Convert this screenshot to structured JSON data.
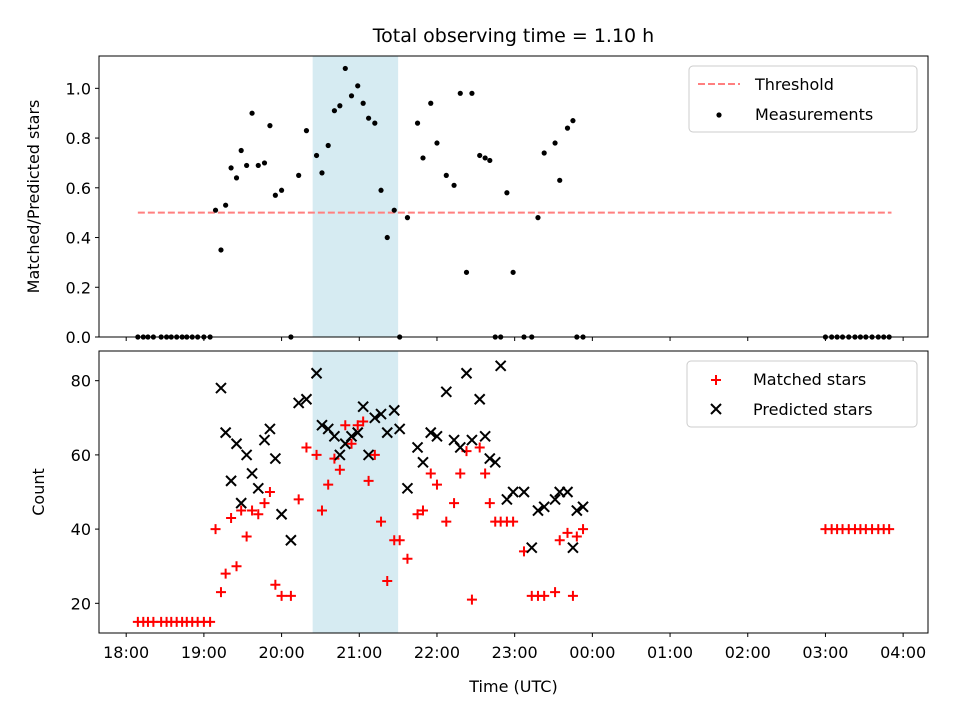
{
  "chart_data": [
    {
      "type": "scatter",
      "title": "Total observing time = 1.10 h",
      "xlabel": "",
      "ylabel": "Matched/Predicted stars",
      "ylim": [
        0,
        1.13
      ],
      "yticks": [
        0.0,
        0.2,
        0.4,
        0.6,
        0.8,
        1.0
      ],
      "ytick_labels": [
        "0.0",
        "0.2",
        "0.4",
        "0.6",
        "0.8",
        "1.0"
      ],
      "x_unit": "hours after 18:00 UTC",
      "xlim": [
        -0.35,
        10.32
      ],
      "legend": [
        "Threshold",
        "Measurements"
      ],
      "legend_position": "top-right",
      "highlight_span": [
        2.4,
        3.5
      ],
      "threshold": {
        "name": "Threshold",
        "x": [
          0.15,
          9.85
        ],
        "y": 0.5,
        "color": "#ff7f7f",
        "style": "dashed"
      },
      "series": [
        {
          "name": "Measurements",
          "color": "#000000",
          "x": [
            0.15,
            0.22,
            0.28,
            0.35,
            0.45,
            0.52,
            0.58,
            0.65,
            0.72,
            0.78,
            0.85,
            0.92,
            1.0,
            1.08,
            1.15,
            1.22,
            1.28,
            1.35,
            1.42,
            1.48,
            1.55,
            1.62,
            1.7,
            1.78,
            1.85,
            1.92,
            2.0,
            2.12,
            2.22,
            2.32,
            2.45,
            2.52,
            2.6,
            2.68,
            2.75,
            2.82,
            2.9,
            2.98,
            3.05,
            3.12,
            3.2,
            3.28,
            3.36,
            3.45,
            3.52,
            3.62,
            3.75,
            3.82,
            3.92,
            4.0,
            4.12,
            4.22,
            4.3,
            4.38,
            4.45,
            4.55,
            4.62,
            4.68,
            4.75,
            4.82,
            4.9,
            4.98,
            5.12,
            5.22,
            5.3,
            5.38,
            5.52,
            5.58,
            5.68,
            5.75,
            5.8,
            5.88,
            9.0,
            9.08,
            9.15,
            9.22,
            9.3,
            9.38,
            9.45,
            9.52,
            9.6,
            9.68,
            9.75,
            9.82
          ],
          "y": [
            0,
            0,
            0,
            0,
            0,
            0,
            0,
            0,
            0,
            0,
            0,
            0,
            0,
            0,
            0.51,
            0.35,
            0.53,
            0.68,
            0.64,
            0.75,
            0.69,
            0.9,
            0.69,
            0.7,
            0.85,
            0.57,
            0.59,
            0,
            0.65,
            0.83,
            0.73,
            0.66,
            0.77,
            0.91,
            0.93,
            1.08,
            0.97,
            1.01,
            0.94,
            0.88,
            0.86,
            0.59,
            0.4,
            0.51,
            0,
            0.48,
            0.86,
            0.72,
            0.94,
            0.78,
            0.65,
            0.61,
            0.98,
            0.26,
            0.98,
            0.73,
            0.72,
            0.71,
            0,
            0,
            0.58,
            0.26,
            0,
            0,
            0.48,
            0.74,
            0.78,
            0.63,
            0.84,
            0.87,
            0,
            0,
            0,
            0,
            0,
            0,
            0,
            0,
            0,
            0,
            0,
            0,
            0,
            0
          ]
        }
      ]
    },
    {
      "type": "scatter",
      "title": "",
      "xlabel": "Time (UTC)",
      "ylabel": "Count",
      "ylim": [
        12,
        88
      ],
      "yticks": [
        20,
        40,
        60,
        80
      ],
      "ytick_labels": [
        "20",
        "40",
        "60",
        "80"
      ],
      "x_unit": "hours after 18:00 UTC",
      "xlim": [
        -0.35,
        10.32
      ],
      "xticks": [
        0,
        1,
        2,
        3,
        4,
        5,
        6,
        7,
        8,
        9,
        10
      ],
      "xtick_labels": [
        "18:00",
        "19:00",
        "20:00",
        "21:00",
        "22:00",
        "23:00",
        "00:00",
        "01:00",
        "02:00",
        "03:00",
        "04:00"
      ],
      "legend": [
        "Matched stars",
        "Predicted stars"
      ],
      "legend_position": "top-right",
      "highlight_span": [
        2.4,
        3.5
      ],
      "series": [
        {
          "name": "Matched stars",
          "marker": "+",
          "color": "#ff0000",
          "x": [
            0.15,
            0.22,
            0.28,
            0.35,
            0.45,
            0.52,
            0.58,
            0.65,
            0.72,
            0.78,
            0.85,
            0.92,
            1.0,
            1.08,
            1.15,
            1.22,
            1.28,
            1.35,
            1.42,
            1.48,
            1.55,
            1.62,
            1.7,
            1.78,
            1.85,
            1.92,
            2.0,
            2.12,
            2.22,
            2.32,
            2.45,
            2.52,
            2.6,
            2.68,
            2.75,
            2.82,
            2.9,
            2.98,
            3.05,
            3.12,
            3.2,
            3.28,
            3.36,
            3.45,
            3.52,
            3.62,
            3.75,
            3.82,
            3.92,
            4.0,
            4.12,
            4.22,
            4.3,
            4.38,
            4.45,
            4.55,
            4.62,
            4.68,
            4.75,
            4.82,
            4.9,
            4.98,
            5.12,
            5.22,
            5.3,
            5.38,
            5.52,
            5.58,
            5.68,
            5.75,
            5.8,
            5.88,
            9.0,
            9.08,
            9.15,
            9.22,
            9.3,
            9.38,
            9.45,
            9.52,
            9.6,
            9.68,
            9.75,
            9.82
          ],
          "y": [
            15,
            15,
            15,
            15,
            15,
            15,
            15,
            15,
            15,
            15,
            15,
            15,
            15,
            15,
            40,
            23,
            28,
            43,
            30,
            45,
            38,
            45,
            44,
            47,
            50,
            25,
            22,
            22,
            48,
            62,
            60,
            45,
            52,
            59,
            56,
            68,
            63,
            68,
            69,
            53,
            60,
            42,
            26,
            37,
            37,
            32,
            44,
            45,
            55,
            52,
            42,
            47,
            55,
            61,
            21,
            62,
            55,
            47,
            42,
            42,
            42,
            42,
            34,
            22,
            22,
            22,
            23,
            37,
            39,
            22,
            38,
            40,
            40,
            40,
            40,
            40,
            40,
            40,
            40,
            40,
            40,
            40,
            40,
            40
          ]
        },
        {
          "name": "Predicted stars",
          "marker": "x",
          "color": "#000000",
          "x": [
            1.22,
            1.28,
            1.35,
            1.42,
            1.48,
            1.55,
            1.62,
            1.7,
            1.78,
            1.85,
            1.92,
            2.0,
            2.12,
            2.22,
            2.32,
            2.45,
            2.52,
            2.6,
            2.68,
            2.75,
            2.82,
            2.9,
            2.98,
            3.05,
            3.12,
            3.2,
            3.28,
            3.36,
            3.45,
            3.52,
            3.62,
            3.75,
            3.82,
            3.92,
            4.0,
            4.12,
            4.22,
            4.3,
            4.38,
            4.45,
            4.55,
            4.62,
            4.68,
            4.75,
            4.82,
            4.9,
            4.98,
            5.12,
            5.22,
            5.3,
            5.38,
            5.52,
            5.58,
            5.68,
            5.75,
            5.8,
            5.88
          ],
          "y": [
            78,
            66,
            53,
            63,
            47,
            60,
            55,
            51,
            64,
            67,
            59,
            44,
            37,
            74,
            75,
            82,
            68,
            67,
            65,
            60,
            63,
            65,
            66,
            73,
            60,
            70,
            71,
            66,
            72,
            67,
            51,
            62,
            58,
            66,
            65,
            77,
            64,
            62,
            82,
            64,
            75,
            65,
            59,
            58,
            84,
            48,
            50,
            50,
            35,
            45,
            46,
            48,
            50,
            50,
            35,
            45,
            46
          ]
        }
      ]
    }
  ]
}
